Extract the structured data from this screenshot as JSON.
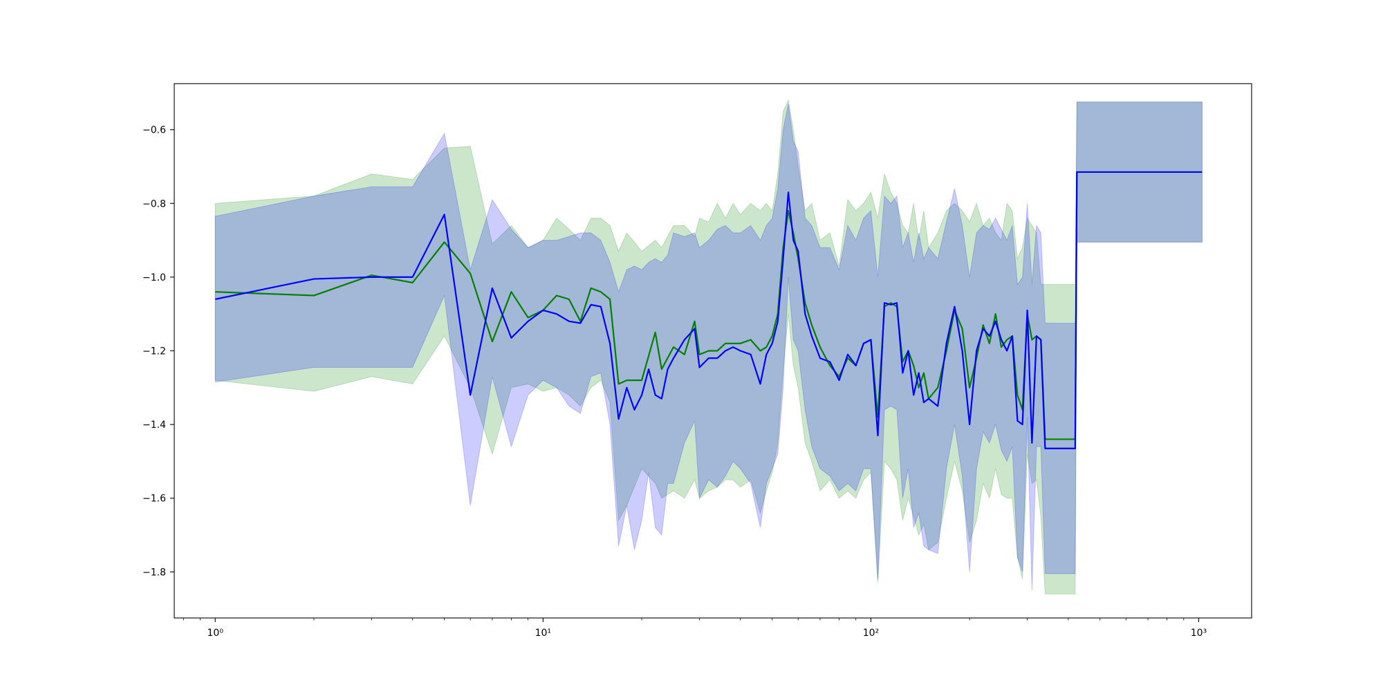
{
  "chart_data": {
    "type": "line",
    "title": "",
    "xlabel": "",
    "ylabel": "",
    "xscale": "log",
    "xlim": [
      0.75,
      1450
    ],
    "ylim": [
      -1.925,
      -0.475
    ],
    "grid": false,
    "legend": "none",
    "x_ticks": [
      1,
      10,
      100,
      1000
    ],
    "x_tick_labels": [
      "10⁰",
      "10¹",
      "10²",
      "10³"
    ],
    "y_ticks": [
      -0.6,
      -0.8,
      -1.0,
      -1.2,
      -1.4,
      -1.6,
      -1.8
    ],
    "y_tick_labels": [
      "−0.6",
      "−0.8",
      "−1.0",
      "−1.2",
      "−1.4",
      "−1.6",
      "−1.8"
    ],
    "series": [
      {
        "color": "#008000",
        "band_color": "#008000",
        "band_opacity": 0.2,
        "x": [
          1,
          2,
          3,
          4,
          5,
          6,
          7,
          8,
          9,
          10,
          11,
          12,
          13,
          14,
          15,
          16,
          17,
          18,
          20,
          22,
          23,
          25,
          27,
          29,
          30,
          32,
          34,
          36,
          38,
          40,
          43,
          46,
          48,
          50,
          52,
          54,
          56,
          58,
          60,
          63,
          66,
          70,
          75,
          80,
          85,
          90,
          95,
          100,
          105,
          110,
          115,
          120,
          125,
          130,
          135,
          140,
          145,
          150,
          160,
          170,
          180,
          190,
          200,
          210,
          220,
          230,
          240,
          250,
          260,
          270,
          280,
          290,
          300,
          310,
          320,
          330,
          340,
          420,
          425,
          1024
        ],
        "y": [
          -1.04,
          -1.05,
          -0.995,
          -1.015,
          -0.905,
          -0.99,
          -1.175,
          -1.04,
          -1.11,
          -1.09,
          -1.05,
          -1.06,
          -1.12,
          -1.03,
          -1.04,
          -1.06,
          -1.29,
          -1.28,
          -1.28,
          -1.15,
          -1.25,
          -1.19,
          -1.21,
          -1.12,
          -1.21,
          -1.2,
          -1.2,
          -1.18,
          -1.18,
          -1.18,
          -1.17,
          -1.2,
          -1.19,
          -1.16,
          -1.1,
          -0.92,
          -0.82,
          -0.88,
          -0.95,
          -1.07,
          -1.13,
          -1.19,
          -1.24,
          -1.27,
          -1.22,
          -1.24,
          -1.18,
          -1.17,
          -1.38,
          -1.08,
          -1.07,
          -1.08,
          -1.23,
          -1.2,
          -1.24,
          -1.3,
          -1.26,
          -1.33,
          -1.3,
          -1.2,
          -1.09,
          -1.14,
          -1.3,
          -1.22,
          -1.13,
          -1.18,
          -1.1,
          -1.19,
          -1.17,
          -1.16,
          -1.32,
          -1.36,
          -1.1,
          -1.17,
          -1.16,
          -1.17,
          -1.44,
          -1.44,
          -0.715,
          -0.715
        ],
        "upper": [
          -0.8,
          -0.78,
          -0.72,
          -0.735,
          -0.65,
          -0.645,
          -0.91,
          -0.86,
          -0.92,
          -0.9,
          -0.84,
          -0.87,
          -0.9,
          -0.84,
          -0.84,
          -0.86,
          -0.93,
          -0.88,
          -0.93,
          -0.9,
          -0.92,
          -0.86,
          -0.86,
          -0.89,
          -0.84,
          -0.85,
          -0.8,
          -0.84,
          -0.8,
          -0.83,
          -0.8,
          -0.82,
          -0.8,
          -0.82,
          -0.72,
          -0.55,
          -0.52,
          -0.6,
          -0.7,
          -0.82,
          -0.8,
          -0.9,
          -0.88,
          -0.97,
          -0.79,
          -0.82,
          -0.8,
          -0.77,
          -0.84,
          -0.72,
          -0.77,
          -0.8,
          -0.86,
          -0.88,
          -0.8,
          -0.9,
          -0.82,
          -0.92,
          -0.88,
          -0.82,
          -0.8,
          -0.82,
          -0.85,
          -0.8,
          -0.86,
          -0.84,
          -0.88,
          -0.9,
          -0.8,
          -0.82,
          -0.95,
          -0.92,
          -0.84,
          -0.86,
          -0.88,
          -1.02,
          -1.02,
          -1.02,
          -0.525,
          -0.525
        ],
        "lower": [
          -1.28,
          -1.31,
          -1.27,
          -1.29,
          -1.16,
          -1.3,
          -1.48,
          -1.3,
          -1.29,
          -1.31,
          -1.3,
          -1.32,
          -1.35,
          -1.3,
          -1.28,
          -1.34,
          -1.66,
          -1.62,
          -1.52,
          -1.56,
          -1.6,
          -1.58,
          -1.6,
          -1.55,
          -1.6,
          -1.58,
          -1.57,
          -1.55,
          -1.55,
          -1.57,
          -1.55,
          -1.64,
          -1.58,
          -1.53,
          -1.45,
          -1.25,
          -1.1,
          -1.24,
          -1.3,
          -1.45,
          -1.5,
          -1.58,
          -1.55,
          -1.6,
          -1.58,
          -1.6,
          -1.55,
          -1.53,
          -1.83,
          -1.5,
          -1.52,
          -1.55,
          -1.66,
          -1.6,
          -1.65,
          -1.7,
          -1.67,
          -1.74,
          -1.72,
          -1.6,
          -1.5,
          -1.58,
          -1.72,
          -1.66,
          -1.56,
          -1.6,
          -1.52,
          -1.59,
          -1.6,
          -1.6,
          -1.76,
          -1.82,
          -1.48,
          -1.56,
          -1.55,
          -1.65,
          -1.86,
          -1.86,
          -0.905,
          -0.905
        ]
      },
      {
        "color": "#0000ff",
        "band_color": "#0000ff",
        "band_opacity": 0.2,
        "x": [
          1,
          2,
          3,
          4,
          5,
          6,
          7,
          8,
          9,
          10,
          11,
          12,
          13,
          14,
          15,
          16,
          17,
          18,
          19,
          20,
          21,
          22,
          23,
          24,
          25,
          27,
          29,
          30,
          32,
          34,
          36,
          38,
          40,
          43,
          46,
          48,
          50,
          52,
          54,
          56,
          58,
          60,
          63,
          66,
          70,
          75,
          80,
          85,
          90,
          95,
          100,
          105,
          110,
          115,
          120,
          125,
          130,
          135,
          140,
          145,
          150,
          160,
          170,
          180,
          190,
          200,
          210,
          220,
          230,
          240,
          250,
          260,
          270,
          280,
          290,
          300,
          310,
          320,
          330,
          340,
          345,
          420,
          425,
          1024
        ],
        "y": [
          -1.06,
          -1.005,
          -1.0,
          -1.0,
          -0.83,
          -1.32,
          -1.03,
          -1.165,
          -1.12,
          -1.09,
          -1.1,
          -1.12,
          -1.125,
          -1.075,
          -1.08,
          -1.18,
          -1.385,
          -1.3,
          -1.36,
          -1.32,
          -1.25,
          -1.32,
          -1.33,
          -1.25,
          -1.22,
          -1.17,
          -1.14,
          -1.245,
          -1.22,
          -1.22,
          -1.2,
          -1.19,
          -1.2,
          -1.21,
          -1.29,
          -1.21,
          -1.18,
          -1.12,
          -0.95,
          -0.77,
          -0.9,
          -0.93,
          -1.1,
          -1.16,
          -1.22,
          -1.23,
          -1.28,
          -1.21,
          -1.24,
          -1.18,
          -1.17,
          -1.43,
          -1.07,
          -1.075,
          -1.07,
          -1.26,
          -1.2,
          -1.32,
          -1.26,
          -1.34,
          -1.33,
          -1.35,
          -1.18,
          -1.08,
          -1.2,
          -1.4,
          -1.2,
          -1.14,
          -1.16,
          -1.12,
          -1.17,
          -1.2,
          -1.16,
          -1.39,
          -1.4,
          -1.09,
          -1.45,
          -1.16,
          -1.17,
          -1.465,
          -1.465,
          -1.465,
          -0.715,
          -0.715
        ],
        "upper": [
          -0.835,
          -0.78,
          -0.755,
          -0.755,
          -0.61,
          -0.98,
          -0.79,
          -0.87,
          -0.92,
          -0.9,
          -0.9,
          -0.89,
          -0.88,
          -0.88,
          -0.9,
          -0.96,
          -1.04,
          -0.98,
          -0.97,
          -0.98,
          -0.96,
          -0.95,
          -0.96,
          -0.94,
          -0.88,
          -0.89,
          -0.88,
          -0.92,
          -0.9,
          -0.87,
          -0.86,
          -0.88,
          -0.88,
          -0.86,
          -0.9,
          -0.86,
          -0.84,
          -0.76,
          -0.6,
          -0.53,
          -0.63,
          -0.66,
          -0.84,
          -0.86,
          -0.92,
          -0.92,
          -0.98,
          -0.86,
          -0.9,
          -0.84,
          -0.82,
          -1.0,
          -0.78,
          -0.8,
          -0.78,
          -0.92,
          -0.88,
          -0.96,
          -0.88,
          -0.95,
          -0.92,
          -0.95,
          -0.85,
          -0.76,
          -0.86,
          -1.0,
          -0.88,
          -0.86,
          -0.87,
          -0.84,
          -0.87,
          -0.9,
          -0.86,
          -1.02,
          -1.0,
          -0.8,
          -1.02,
          -0.86,
          -0.88,
          -1.125,
          -1.125,
          -1.125,
          -0.525,
          -0.525
        ],
        "lower": [
          -1.285,
          -1.245,
          -1.245,
          -1.245,
          -1.05,
          -1.62,
          -1.27,
          -1.46,
          -1.32,
          -1.28,
          -1.3,
          -1.35,
          -1.37,
          -1.27,
          -1.26,
          -1.4,
          -1.73,
          -1.62,
          -1.74,
          -1.66,
          -1.53,
          -1.68,
          -1.7,
          -1.56,
          -1.56,
          -1.45,
          -1.39,
          -1.6,
          -1.55,
          -1.57,
          -1.54,
          -1.5,
          -1.52,
          -1.56,
          -1.68,
          -1.56,
          -1.52,
          -1.48,
          -1.3,
          -1.0,
          -1.17,
          -1.2,
          -1.36,
          -1.46,
          -1.52,
          -1.54,
          -1.58,
          -1.56,
          -1.58,
          -1.52,
          -1.52,
          -1.82,
          -1.36,
          -1.35,
          -1.36,
          -1.6,
          -1.52,
          -1.68,
          -1.64,
          -1.73,
          -1.74,
          -1.75,
          -1.52,
          -1.4,
          -1.54,
          -1.8,
          -1.52,
          -1.42,
          -1.45,
          -1.4,
          -1.47,
          -1.5,
          -1.46,
          -1.76,
          -1.8,
          -1.38,
          -1.85,
          -1.46,
          -1.46,
          -1.805,
          -1.805,
          -1.805,
          -0.905,
          -0.905
        ]
      }
    ]
  }
}
